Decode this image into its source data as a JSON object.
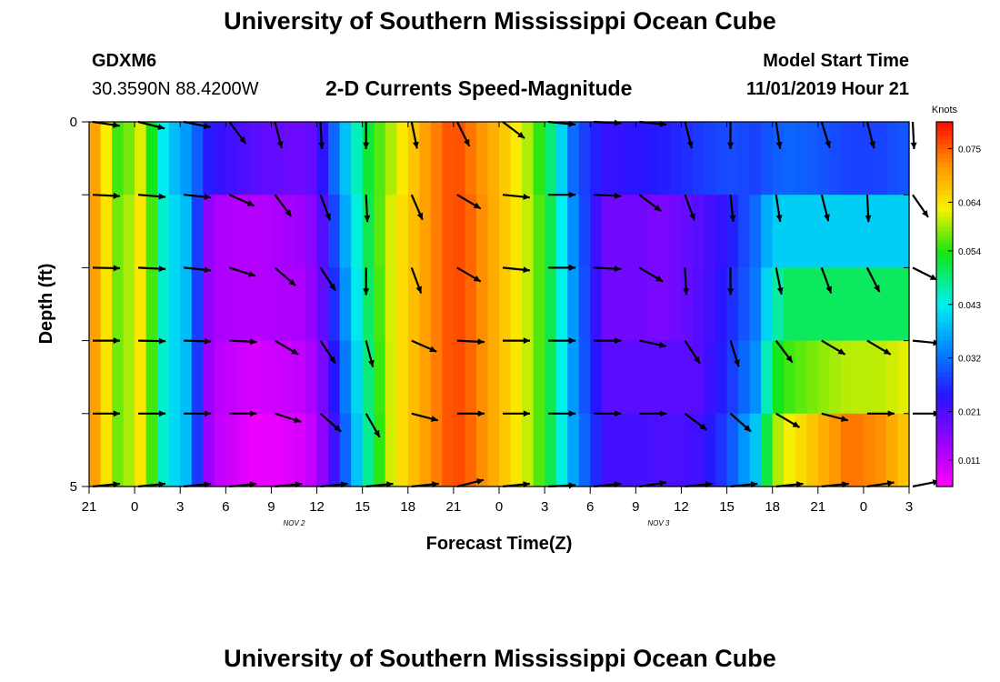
{
  "header": {
    "title": "University of Southern Mississippi Ocean Cube",
    "station_id": "GDXM6",
    "station_coords": "30.3590N 88.4200W",
    "subtitle": "2-D Currents Speed-Magnitude",
    "model_start_label": "Model Start Time",
    "model_start_value": "11/01/2019 Hour 21"
  },
  "footer": {
    "title": "University of Southern Mississippi Ocean Cube"
  },
  "chart_data": {
    "type": "heatmap",
    "title": "2-D Currents Speed-Magnitude",
    "xlabel": "Forecast Time(Z)",
    "ylabel": "Depth (ft)",
    "x_tick_labels": [
      "21",
      "0",
      "3",
      "6",
      "9",
      "12",
      "15",
      "18",
      "21",
      "0",
      "3",
      "6",
      "9",
      "12",
      "15",
      "18",
      "21",
      "0",
      "3"
    ],
    "date_labels": [
      {
        "text": "NOV 2",
        "at_tick": 4.5
      },
      {
        "text": "NOV 3",
        "at_tick": 12.5
      }
    ],
    "y_tick_labels": [
      "0",
      "5"
    ],
    "ylim": [
      0,
      5
    ],
    "colorbar": {
      "unit": "Knots",
      "range": [
        0.0056,
        0.0805
      ],
      "tick_values": [
        0.011,
        0.021,
        0.032,
        0.043,
        0.054,
        0.064,
        0.075
      ],
      "tick_labels": [
        "0.011",
        "0.021",
        "0.032",
        "0.043",
        "0.054",
        "0.064",
        "0.075"
      ]
    },
    "speed_knots_by_hour_keyframes": {
      "depth_rows": 5,
      "hours": [
        0,
        2,
        3.5,
        5,
        6.5,
        8,
        11,
        14,
        15,
        16,
        17,
        18.5,
        20,
        22,
        24,
        25,
        27,
        29,
        30.5,
        32,
        34,
        36,
        38,
        40,
        42,
        44,
        45,
        46,
        48,
        50,
        52,
        54
      ],
      "rows": [
        [
          0.074,
          0.054,
          0.062,
          0.041,
          0.035,
          0.024,
          0.02,
          0.018,
          0.02,
          0.03,
          0.04,
          0.053,
          0.06,
          0.07,
          0.077,
          0.074,
          0.068,
          0.059,
          0.048,
          0.03,
          0.023,
          0.024,
          0.025,
          0.027,
          0.029,
          0.028,
          0.03,
          0.031,
          0.03,
          0.028,
          0.028,
          0.03
        ],
        [
          0.074,
          0.056,
          0.064,
          0.043,
          0.038,
          0.013,
          0.012,
          0.014,
          0.017,
          0.027,
          0.038,
          0.052,
          0.062,
          0.07,
          0.077,
          0.075,
          0.068,
          0.06,
          0.05,
          0.033,
          0.018,
          0.018,
          0.017,
          0.02,
          0.024,
          0.032,
          0.04,
          0.04,
          0.04,
          0.04,
          0.04,
          0.04
        ],
        [
          0.074,
          0.056,
          0.064,
          0.043,
          0.038,
          0.013,
          0.012,
          0.013,
          0.016,
          0.025,
          0.036,
          0.051,
          0.062,
          0.07,
          0.077,
          0.075,
          0.068,
          0.06,
          0.05,
          0.034,
          0.018,
          0.018,
          0.017,
          0.02,
          0.025,
          0.033,
          0.045,
          0.05,
          0.05,
          0.05,
          0.05,
          0.05
        ],
        [
          0.074,
          0.056,
          0.064,
          0.043,
          0.038,
          0.012,
          0.009,
          0.011,
          0.014,
          0.023,
          0.034,
          0.05,
          0.062,
          0.07,
          0.077,
          0.075,
          0.068,
          0.06,
          0.05,
          0.034,
          0.02,
          0.02,
          0.02,
          0.02,
          0.026,
          0.035,
          0.052,
          0.055,
          0.058,
          0.06,
          0.06,
          0.062
        ],
        [
          0.074,
          0.056,
          0.064,
          0.043,
          0.038,
          0.012,
          0.007,
          0.009,
          0.012,
          0.021,
          0.032,
          0.049,
          0.062,
          0.07,
          0.077,
          0.075,
          0.068,
          0.06,
          0.05,
          0.035,
          0.022,
          0.022,
          0.021,
          0.022,
          0.028,
          0.04,
          0.058,
          0.062,
          0.068,
          0.074,
          0.072,
          0.066
        ]
      ]
    },
    "vectors": {
      "hours": [
        0.5,
        7.5,
        12.5,
        20,
        31,
        37.5,
        42,
        46,
        50
      ],
      "depth_rows": [
        0,
        1,
        2,
        3,
        4,
        5
      ],
      "arrow_times": [
        0,
        3,
        6,
        9,
        12,
        15,
        18,
        21,
        24,
        27,
        30,
        33,
        36,
        39,
        42,
        45,
        48,
        51,
        54
      ],
      "u_by_depth": [
        [
          1,
          1,
          1,
          0.6,
          0.25,
          0.05,
          0.0,
          0.2,
          0.45,
          0.8,
          1,
          1,
          1,
          0.25,
          0.0,
          0.15,
          0.3,
          0.25,
          0.05
        ],
        [
          1,
          1,
          1,
          0.9,
          0.6,
          0.35,
          0.05,
          0.4,
          0.85,
          1,
          1,
          1,
          0.8,
          0.35,
          0.1,
          0.15,
          0.25,
          0.05,
          0.55
        ],
        [
          1,
          1,
          1,
          0.95,
          0.75,
          0.55,
          0.0,
          0.35,
          0.85,
          1,
          1,
          1,
          0.85,
          0.05,
          0.0,
          0.2,
          0.35,
          0.45,
          0.9
        ],
        [
          1,
          1,
          1,
          1,
          0.85,
          0.55,
          0.25,
          0.9,
          1,
          1,
          1,
          1,
          0.95,
          0.55,
          0.3,
          0.6,
          0.85,
          0.85,
          1
        ],
        [
          1,
          1,
          1,
          1,
          0.95,
          0.75,
          0.5,
          0.97,
          1,
          1,
          1,
          1,
          1,
          0.8,
          0.75,
          0.85,
          0.97,
          1,
          1
        ],
        [
          1,
          1,
          1,
          1,
          1,
          1,
          1,
          1,
          1,
          1,
          1,
          1,
          1,
          1,
          1,
          1,
          1,
          1,
          1
        ]
      ],
      "v_by_depth": [
        [
          -0.15,
          -0.25,
          -0.2,
          -0.8,
          -0.97,
          -1,
          -1,
          -0.98,
          -0.9,
          -0.6,
          -0.1,
          -0.05,
          -0.1,
          -0.97,
          -1,
          -0.99,
          -0.95,
          -0.97,
          -1
        ],
        [
          -0.05,
          -0.08,
          -0.1,
          -0.4,
          -0.8,
          -0.94,
          -1,
          -0.92,
          -0.5,
          -0.1,
          0,
          -0.05,
          -0.6,
          -0.94,
          -0.99,
          -0.99,
          -0.97,
          -1,
          -0.8
        ],
        [
          -0.02,
          -0.05,
          -0.1,
          -0.3,
          -0.65,
          -0.84,
          -1,
          -0.94,
          -0.5,
          -0.1,
          0,
          -0.05,
          -0.5,
          -1,
          -1,
          -0.98,
          -0.94,
          -0.89,
          -0.45
        ],
        [
          0,
          -0.02,
          -0.03,
          -0.05,
          -0.5,
          -0.84,
          -0.97,
          -0.4,
          -0.05,
          0,
          0,
          0,
          -0.2,
          -0.84,
          -0.95,
          -0.8,
          -0.5,
          -0.5,
          -0.1
        ],
        [
          0,
          0,
          0,
          0,
          -0.3,
          -0.66,
          -0.87,
          -0.25,
          0,
          0,
          0,
          0,
          0,
          -0.6,
          -0.66,
          -0.5,
          -0.25,
          0,
          0
        ],
        [
          0.1,
          0.1,
          0.1,
          0.1,
          0.1,
          0.1,
          0.1,
          0.1,
          0.25,
          0.1,
          0.05,
          0.1,
          0.15,
          0.1,
          0.1,
          0.1,
          0.1,
          0.15,
          0.2
        ]
      ],
      "lengths": [
        1,
        1,
        1,
        1,
        1,
        1,
        1,
        1,
        1,
        1,
        1,
        1,
        1,
        1,
        1,
        1,
        1,
        1,
        1
      ]
    }
  }
}
